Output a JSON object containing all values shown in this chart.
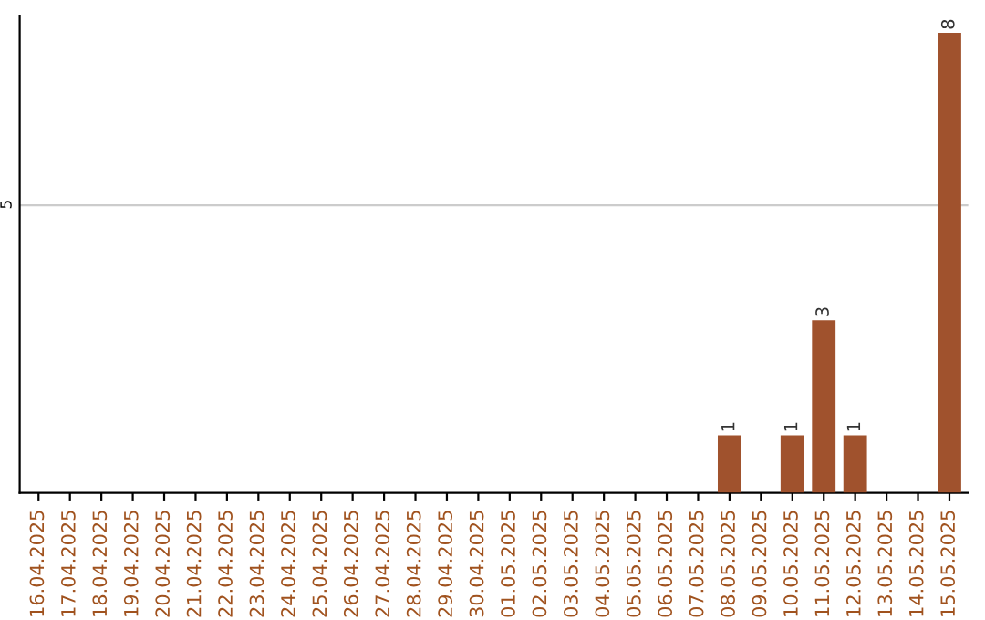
{
  "chart_data": {
    "type": "bar",
    "categories": [
      "16.04.2025",
      "17.04.2025",
      "18.04.2025",
      "19.04.2025",
      "20.04.2025",
      "21.04.2025",
      "22.04.2025",
      "23.04.2025",
      "24.04.2025",
      "25.04.2025",
      "26.04.2025",
      "27.04.2025",
      "28.04.2025",
      "29.04.2025",
      "30.04.2025",
      "01.05.2025",
      "02.05.2025",
      "03.05.2025",
      "04.05.2025",
      "05.05.2025",
      "06.05.2025",
      "07.05.2025",
      "08.05.2025",
      "09.05.2025",
      "10.05.2025",
      "11.05.2025",
      "12.05.2025",
      "13.05.2025",
      "14.05.2025",
      "15.05.2025"
    ],
    "values": [
      null,
      null,
      null,
      null,
      null,
      null,
      null,
      null,
      null,
      null,
      null,
      null,
      null,
      null,
      null,
      null,
      null,
      null,
      null,
      null,
      null,
      null,
      1,
      null,
      1,
      3,
      1,
      null,
      null,
      8
    ],
    "color": "#a0522d",
    "ylim": [
      0,
      8.3
    ],
    "yticks": [
      5
    ],
    "grid": "y",
    "data_labels": true
  }
}
